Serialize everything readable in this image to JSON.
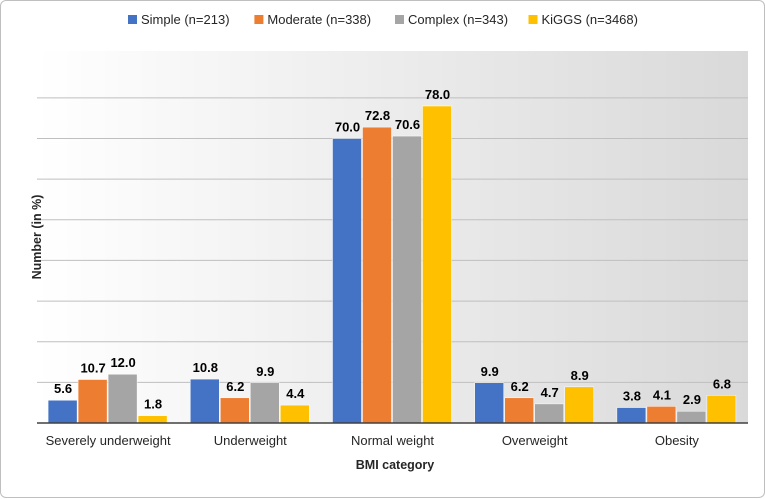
{
  "chart_data": {
    "type": "bar",
    "title": "",
    "xlabel": "BMI category",
    "ylabel": "Number (in %)",
    "ylim": [
      0,
      80
    ],
    "grid": true,
    "legend_position": "top",
    "categories": [
      "Severely underweight",
      "Underweight",
      "Normal weight",
      "Overweight",
      "Obesity"
    ],
    "series": [
      {
        "name": "Simple (n=213)",
        "color": "#4472c4",
        "values": [
          5.6,
          10.8,
          70.0,
          9.9,
          3.8
        ],
        "labels": [
          "5.6",
          "10.8",
          "70.0",
          "9.9",
          "3.8"
        ]
      },
      {
        "name": "Moderate (n=338)",
        "color": "#ed7d31",
        "values": [
          10.7,
          6.2,
          72.8,
          6.2,
          4.1
        ],
        "labels": [
          "10.7",
          "6.2",
          "72.8",
          "6.2",
          "4.1"
        ]
      },
      {
        "name": "Complex (n=343)",
        "color": "#a5a5a5",
        "values": [
          12.0,
          9.9,
          70.6,
          4.7,
          2.9
        ],
        "labels": [
          "12.0",
          "9.9",
          "70.6",
          "4.7",
          "2.9"
        ]
      },
      {
        "name": "KiGGS (n=3468)",
        "color": "#ffc000",
        "values": [
          1.8,
          4.4,
          78.0,
          8.9,
          6.8
        ],
        "labels": [
          "1.8",
          "4.4",
          "78.0",
          "8.9",
          "6.8"
        ]
      }
    ]
  }
}
